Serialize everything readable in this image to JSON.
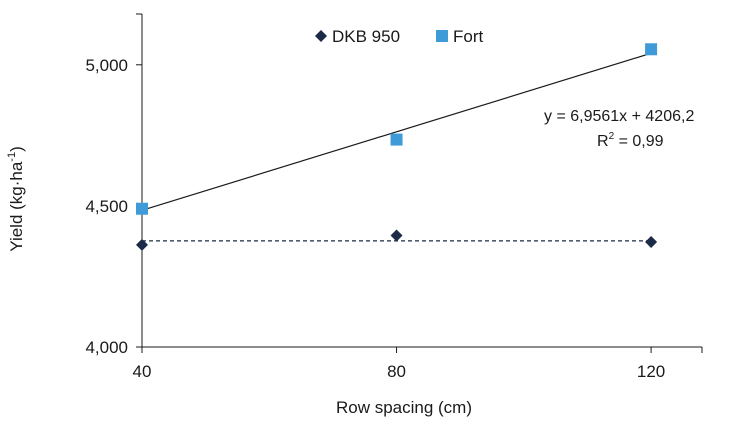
{
  "chart_data": {
    "type": "scatter",
    "xlabel": "Row spacing (cm)",
    "ylabel": "Yield (kg·ha",
    "ylabel_sup": "-1",
    "ylabel_close": ")",
    "xlim": [
      40,
      128
    ],
    "ylim": [
      4000,
      5180
    ],
    "x_ticks": [
      40,
      80,
      120
    ],
    "x_tick_labels": [
      "40",
      "80",
      "120"
    ],
    "y_ticks": [
      4000,
      4500,
      5000
    ],
    "y_tick_labels": [
      "4,000",
      "4,500",
      "5,000"
    ],
    "grid": false,
    "legend_position": "top-center",
    "series": [
      {
        "name": "DKB 950",
        "marker": "diamond",
        "color": "#1b2a47",
        "points": [
          [
            40,
            4362
          ],
          [
            80,
            4395
          ],
          [
            120,
            4372
          ]
        ],
        "fit": {
          "style": "dashed",
          "color": "#1b2a47",
          "x": [
            40,
            120
          ],
          "y": [
            4376,
            4376
          ]
        }
      },
      {
        "name": "Fort",
        "marker": "square",
        "color": "#3f9ad8",
        "points": [
          [
            40,
            4490
          ],
          [
            80,
            4735
          ],
          [
            120,
            5055
          ]
        ],
        "fit": {
          "style": "solid",
          "color": "#1a1a1a",
          "x": [
            40,
            120
          ],
          "y": [
            4484.4,
            5040.9
          ]
        }
      }
    ],
    "annotation": {
      "equation": "y = 6,9561x + 4206,2",
      "r2_prefix": "R",
      "r2_sup": "2",
      "r2_suffix": " = 0,99"
    }
  }
}
